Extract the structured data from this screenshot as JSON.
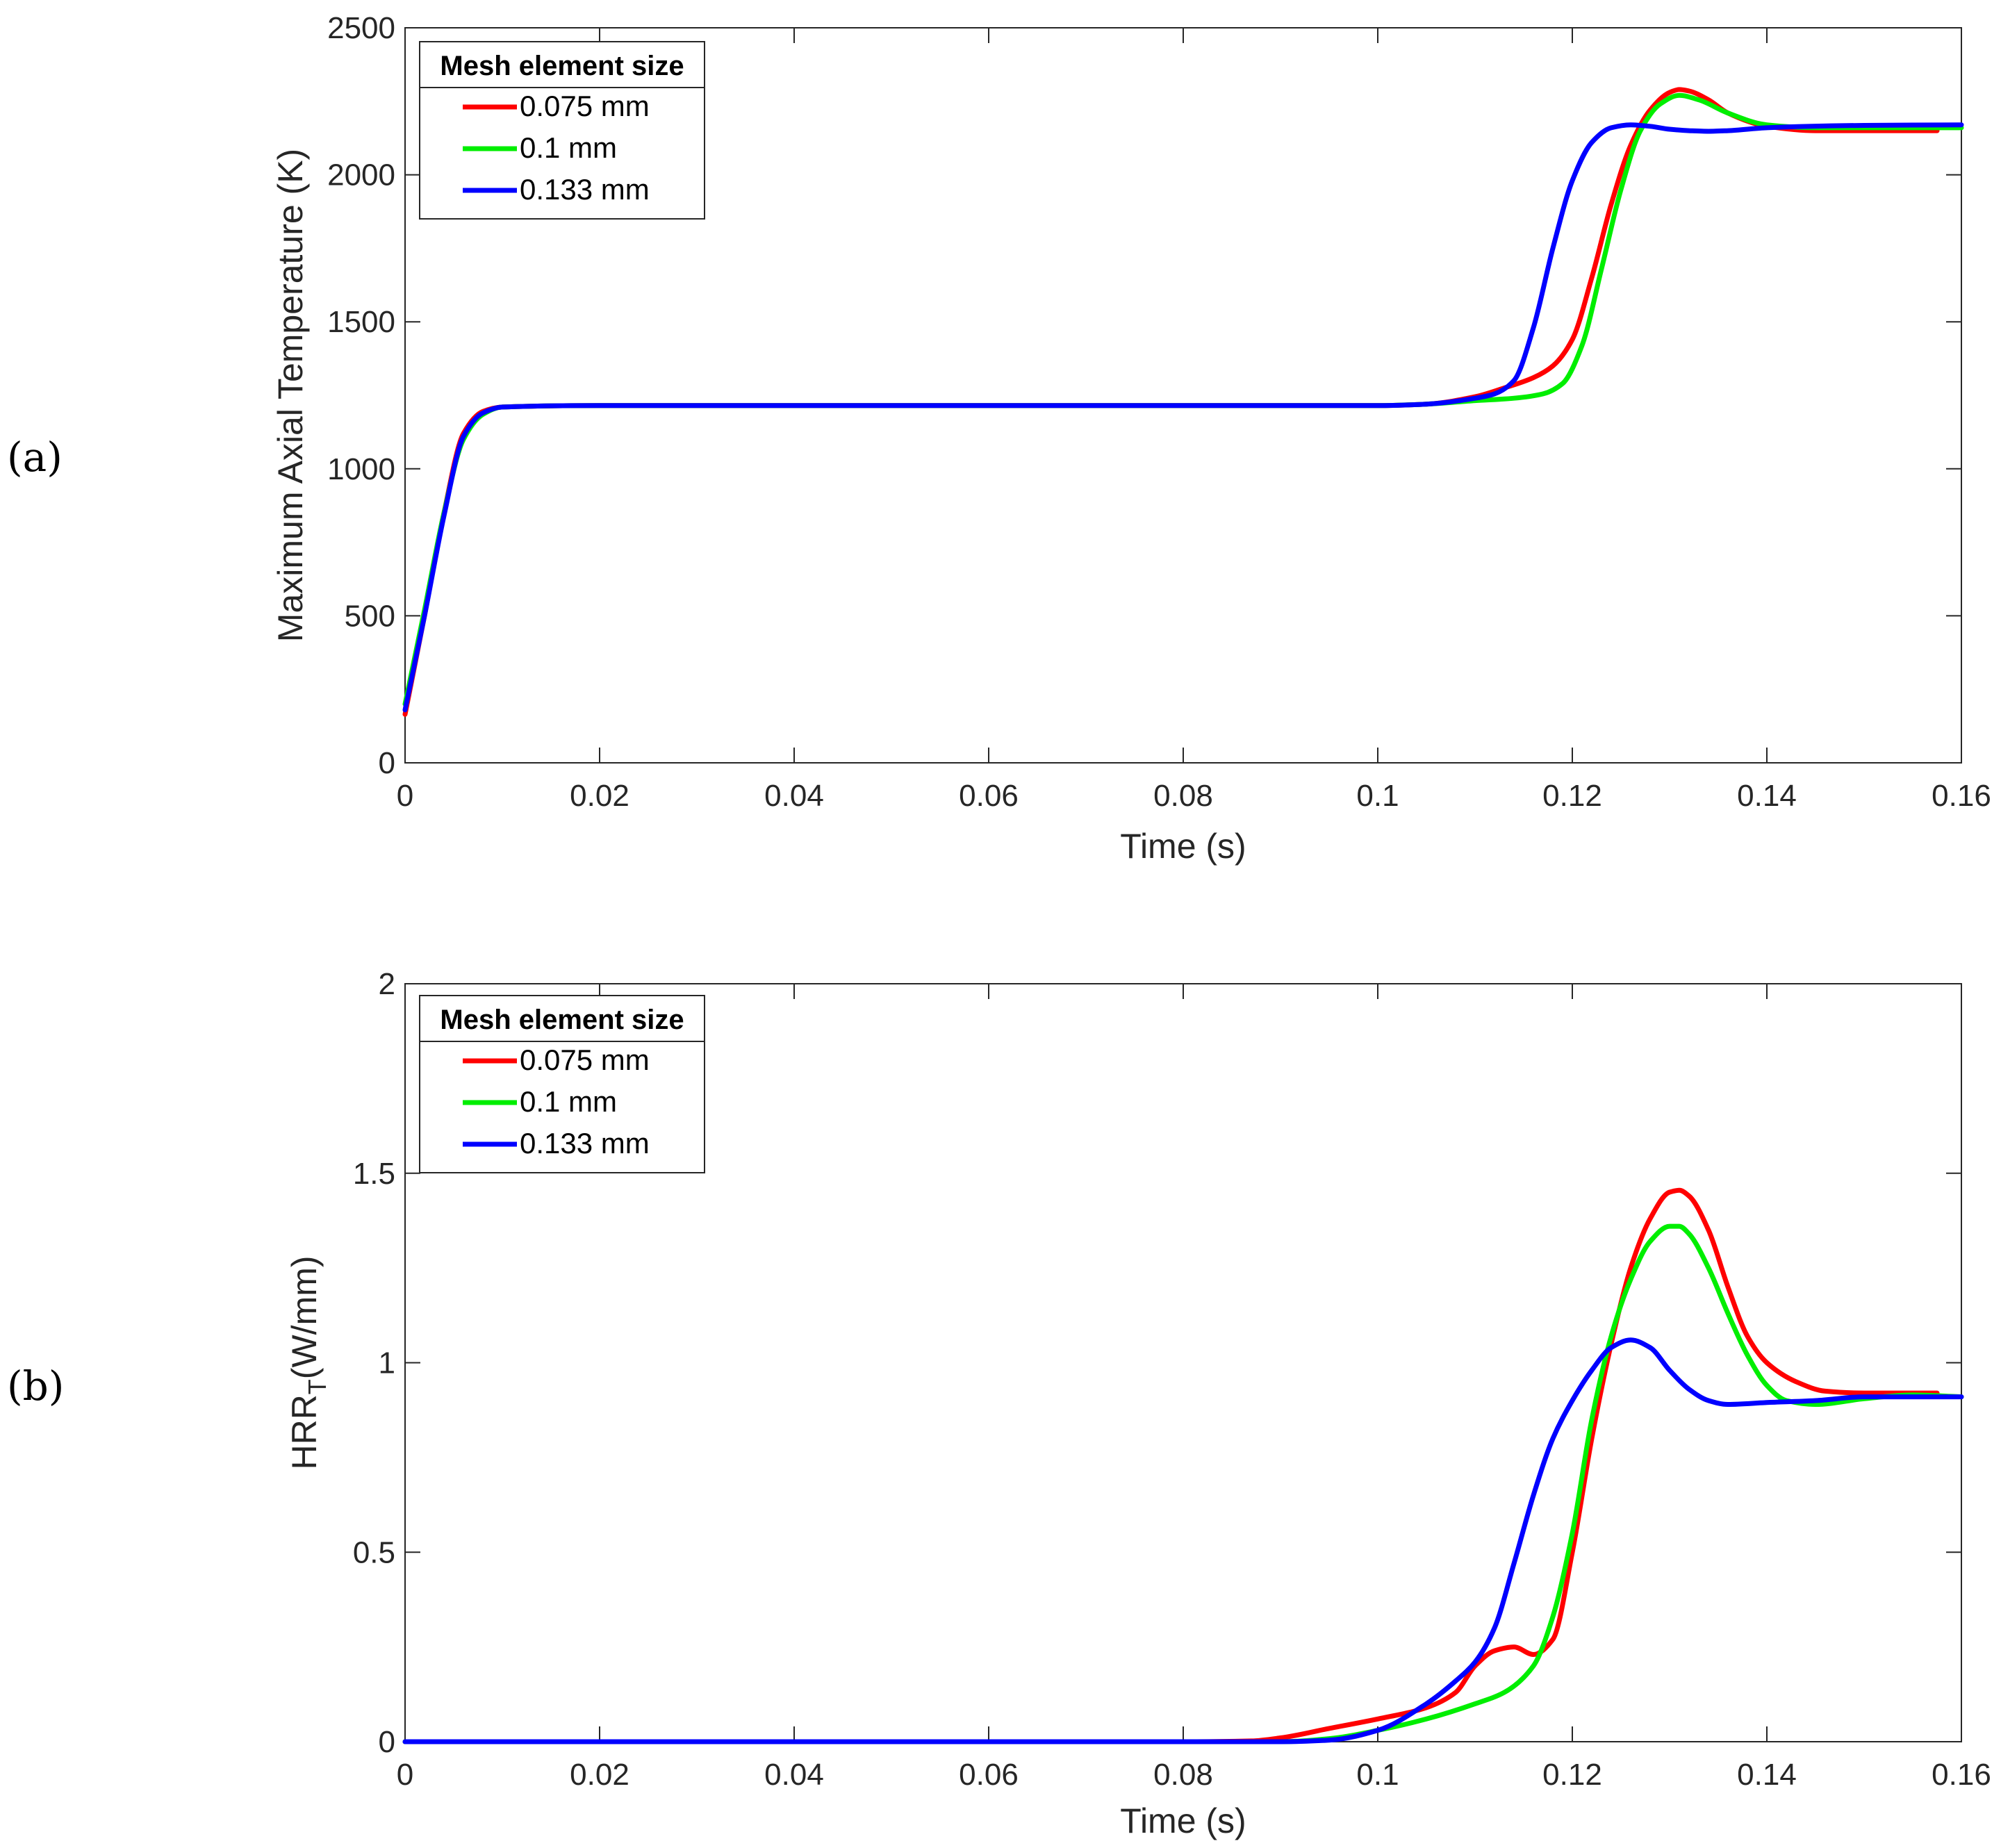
{
  "panel_labels": {
    "a": "(a)",
    "b": "(b)"
  },
  "series_colors": {
    "0.075 mm": "#ff0000",
    "0.1 mm": "#00ee00",
    "0.133 mm": "#0000ff"
  },
  "chart_data": [
    {
      "id": "a",
      "type": "line",
      "title": "",
      "xlabel": "Time (s)",
      "ylabel": "Maximum Axial Temperature (K)",
      "xlim": [
        0,
        0.16
      ],
      "ylim": [
        0,
        2500
      ],
      "xticks": [
        0,
        0.02,
        0.04,
        0.06,
        0.08,
        0.1,
        0.12,
        0.14,
        0.16
      ],
      "xtick_labels": [
        "0",
        "0.02",
        "0.04",
        "0.06",
        "0.08",
        "0.1",
        "0.12",
        "0.14",
        "0.16"
      ],
      "yticks": [
        0,
        500,
        1000,
        1500,
        2000,
        2500
      ],
      "ytick_labels": [
        "0",
        "500",
        "1000",
        "1500",
        "2000",
        "2500"
      ],
      "grid": false,
      "legend": {
        "title": "Mesh element size",
        "position": "top-left"
      },
      "series": [
        {
          "name": "0.075 mm",
          "color": "#ff0000",
          "x": [
            0,
            0.002,
            0.004,
            0.006,
            0.008,
            0.01,
            0.02,
            0.1,
            0.105,
            0.11,
            0.113,
            0.116,
            0.118,
            0.12,
            0.122,
            0.124,
            0.126,
            0.128,
            0.13,
            0.131,
            0.132,
            0.134,
            0.136,
            0.14,
            0.145,
            0.155,
            0.1575
          ],
          "y": [
            165,
            500,
            850,
            1120,
            1195,
            1210,
            1215,
            1215,
            1220,
            1245,
            1275,
            1310,
            1350,
            1440,
            1650,
            1900,
            2100,
            2220,
            2280,
            2290,
            2285,
            2255,
            2210,
            2165,
            2150,
            2150,
            2150
          ]
        },
        {
          "name": "0.1 mm",
          "color": "#00ee00",
          "x": [
            0,
            0.002,
            0.004,
            0.006,
            0.008,
            0.01,
            0.02,
            0.1,
            0.105,
            0.11,
            0.114,
            0.117,
            0.119,
            0.121,
            0.123,
            0.125,
            0.127,
            0.129,
            0.131,
            0.133,
            0.136,
            0.14,
            0.145,
            0.155,
            0.16
          ],
          "y": [
            200,
            520,
            850,
            1100,
            1185,
            1210,
            1215,
            1215,
            1220,
            1232,
            1240,
            1255,
            1290,
            1420,
            1680,
            1950,
            2150,
            2240,
            2270,
            2255,
            2210,
            2170,
            2160,
            2160,
            2160
          ]
        },
        {
          "name": "0.133 mm",
          "color": "#0000ff",
          "x": [
            0,
            0.002,
            0.004,
            0.006,
            0.008,
            0.01,
            0.02,
            0.1,
            0.105,
            0.11,
            0.112,
            0.114,
            0.116,
            0.118,
            0.12,
            0.122,
            0.124,
            0.126,
            0.128,
            0.13,
            0.132,
            0.134,
            0.136,
            0.14,
            0.15,
            0.16
          ],
          "y": [
            180,
            500,
            840,
            1110,
            1190,
            1210,
            1215,
            1215,
            1220,
            1240,
            1255,
            1300,
            1480,
            1750,
            1980,
            2110,
            2160,
            2170,
            2165,
            2155,
            2150,
            2148,
            2150,
            2160,
            2168,
            2170
          ]
        }
      ]
    },
    {
      "id": "b",
      "type": "line",
      "title": "",
      "xlabel": "Time (s)",
      "ylabel": "HRR",
      "ylabel_subscript": "T",
      "ylabel_suffix": "(W/mm)",
      "xlim": [
        0,
        0.16
      ],
      "ylim": [
        0,
        2
      ],
      "xticks": [
        0,
        0.02,
        0.04,
        0.06,
        0.08,
        0.1,
        0.12,
        0.14,
        0.16
      ],
      "xtick_labels": [
        "0",
        "0.02",
        "0.04",
        "0.06",
        "0.08",
        "0.1",
        "0.12",
        "0.14",
        "0.16"
      ],
      "yticks": [
        0,
        0.5,
        1,
        1.5,
        2
      ],
      "ytick_labels": [
        "0",
        "0.5",
        "1",
        "1.5",
        "2"
      ],
      "grid": false,
      "legend": {
        "title": "Mesh element size",
        "position": "top-left"
      },
      "series": [
        {
          "name": "0.075 mm",
          "color": "#ff0000",
          "x": [
            0,
            0.08,
            0.087,
            0.09,
            0.095,
            0.1,
            0.105,
            0.108,
            0.11,
            0.112,
            0.114,
            0.116,
            0.118,
            0.12,
            0.122,
            0.124,
            0.126,
            0.128,
            0.13,
            0.131,
            0.132,
            0.134,
            0.136,
            0.138,
            0.14,
            0.143,
            0.146,
            0.15,
            0.155,
            0.1575
          ],
          "y": [
            0,
            0,
            0.002,
            0.01,
            0.035,
            0.06,
            0.09,
            0.13,
            0.2,
            0.24,
            0.25,
            0.23,
            0.27,
            0.5,
            0.8,
            1.05,
            1.25,
            1.38,
            1.45,
            1.455,
            1.44,
            1.35,
            1.2,
            1.07,
            1.0,
            0.95,
            0.925,
            0.92,
            0.92,
            0.92
          ]
        },
        {
          "name": "0.1 mm",
          "color": "#00ee00",
          "x": [
            0,
            0.09,
            0.095,
            0.1,
            0.105,
            0.11,
            0.113,
            0.116,
            0.118,
            0.12,
            0.122,
            0.124,
            0.126,
            0.128,
            0.13,
            0.131,
            0.132,
            0.134,
            0.136,
            0.138,
            0.14,
            0.142,
            0.145,
            0.15,
            0.155,
            0.16
          ],
          "y": [
            0,
            0,
            0.008,
            0.03,
            0.06,
            0.1,
            0.13,
            0.2,
            0.33,
            0.55,
            0.85,
            1.07,
            1.22,
            1.32,
            1.36,
            1.36,
            1.34,
            1.25,
            1.13,
            1.02,
            0.94,
            0.9,
            0.89,
            0.905,
            0.915,
            0.91
          ]
        },
        {
          "name": "0.133 mm",
          "color": "#0000ff",
          "x": [
            0,
            0.09,
            0.095,
            0.1,
            0.105,
            0.108,
            0.11,
            0.112,
            0.114,
            0.116,
            0.118,
            0.12,
            0.122,
            0.124,
            0.126,
            0.128,
            0.13,
            0.132,
            0.134,
            0.136,
            0.14,
            0.145,
            0.15,
            0.155,
            0.16
          ],
          "y": [
            0,
            0,
            0.004,
            0.03,
            0.1,
            0.16,
            0.21,
            0.3,
            0.47,
            0.65,
            0.8,
            0.9,
            0.98,
            1.04,
            1.06,
            1.04,
            0.98,
            0.93,
            0.9,
            0.89,
            0.895,
            0.9,
            0.91,
            0.91,
            0.91
          ]
        }
      ]
    }
  ]
}
